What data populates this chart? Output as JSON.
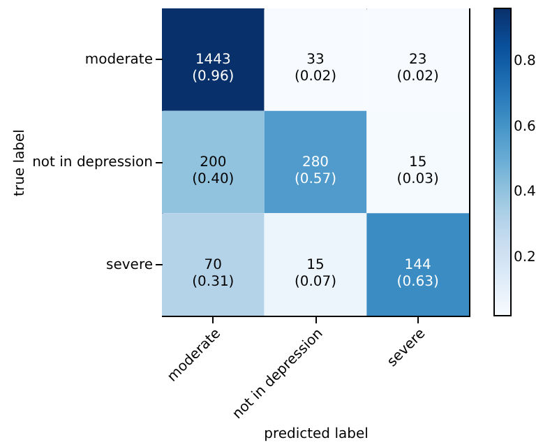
{
  "chart_data": {
    "type": "heatmap",
    "xlabel": "predicted label",
    "ylabel": "true label",
    "categories": [
      "moderate",
      "not in depression",
      "severe"
    ],
    "y_categories": [
      "moderate",
      "not in depression",
      "severe"
    ],
    "cells": [
      [
        0.96,
        0.02,
        0.02
      ],
      [
        0.4,
        0.57,
        0.03
      ],
      [
        0.31,
        0.07,
        0.63
      ]
    ],
    "cell_labels": [
      [
        "1443\n(0.96)",
        "33\n(0.02)",
        "23\n(0.02)"
      ],
      [
        "200\n(0.40)",
        "280\n(0.57)",
        "15\n(0.03)"
      ],
      [
        "70\n(0.31)",
        "15\n(0.07)",
        "144\n(0.63)"
      ]
    ],
    "clim": [
      0.02,
      0.96
    ],
    "cticks": [
      0.2,
      0.4,
      0.6,
      0.8
    ]
  }
}
